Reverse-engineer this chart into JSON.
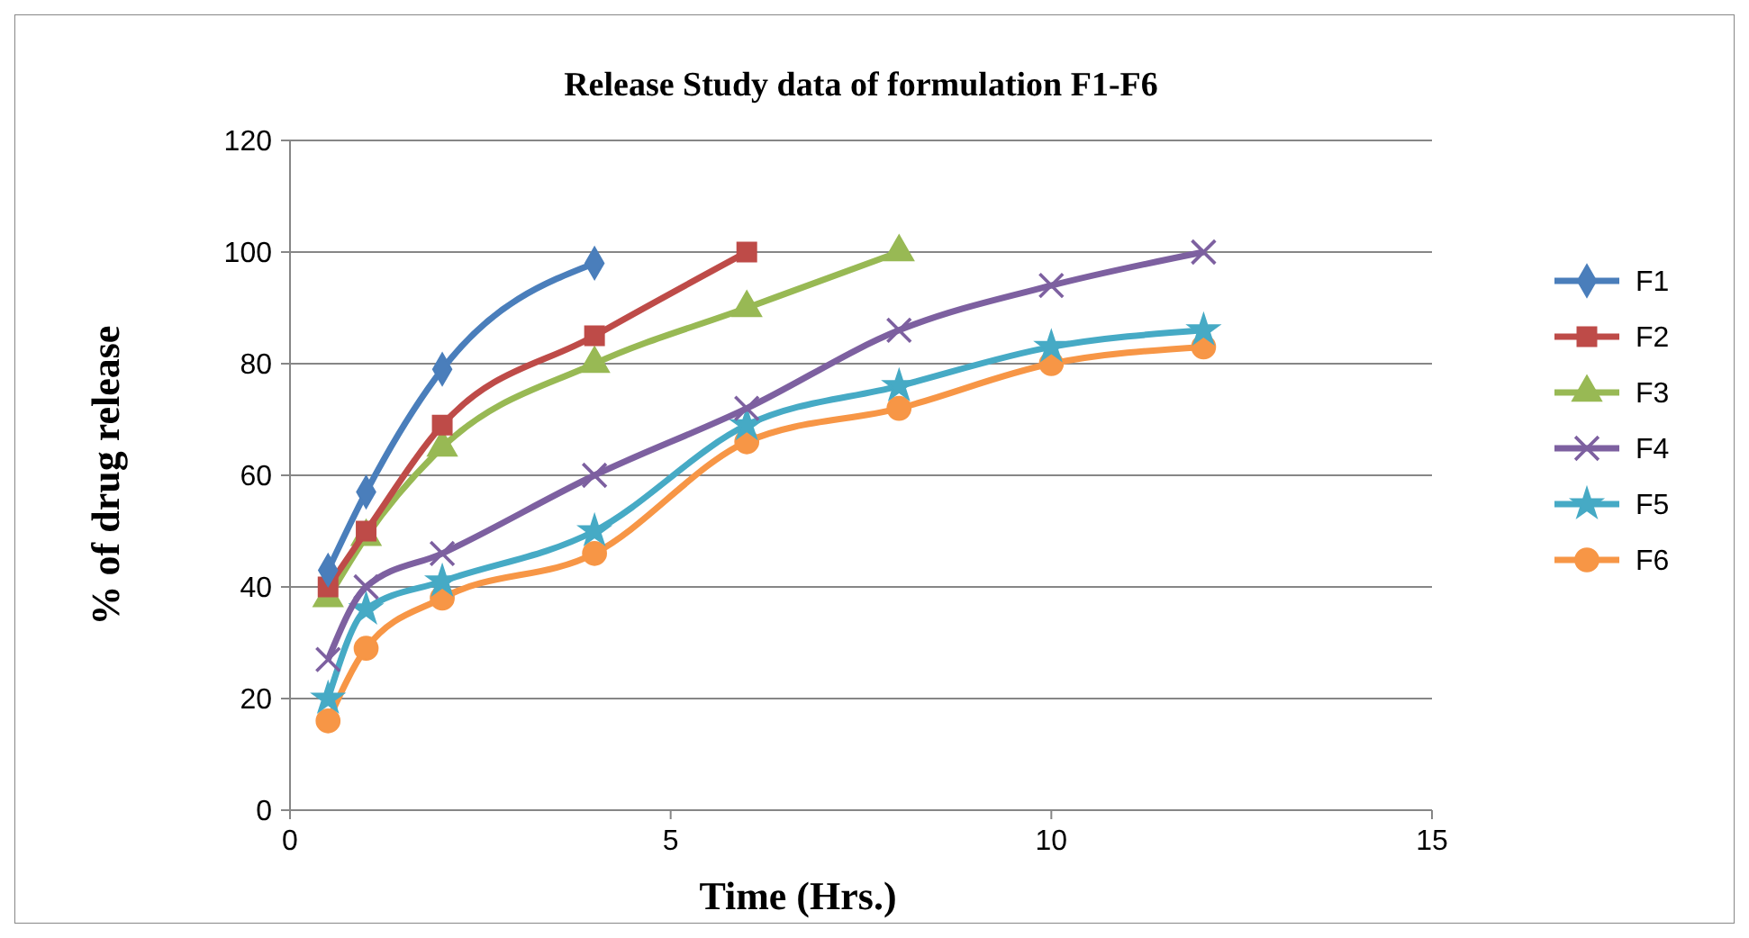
{
  "chart_data": {
    "type": "line",
    "title": "Release Study data of formulation F1-F6",
    "xlabel": "Time (Hrs.)",
    "ylabel": "% of drug release",
    "xlim": [
      0,
      15
    ],
    "xticks": [
      0,
      5,
      10,
      15
    ],
    "ylim": [
      0,
      120
    ],
    "yticks": [
      0,
      20,
      40,
      60,
      80,
      100,
      120
    ],
    "grid": "y",
    "legend": "right",
    "series": [
      {
        "name": "F1",
        "color": "#4a7ebb",
        "marker": "diamond",
        "x": [
          0.5,
          1,
          2,
          4
        ],
        "values": [
          43,
          57,
          79,
          98
        ]
      },
      {
        "name": "F2",
        "color": "#be4b48",
        "marker": "square",
        "x": [
          0.5,
          1,
          2,
          4,
          6
        ],
        "values": [
          40,
          50,
          69,
          85,
          100
        ]
      },
      {
        "name": "F3",
        "color": "#98b954",
        "marker": "triangle",
        "x": [
          0.5,
          1,
          2,
          4,
          6,
          8
        ],
        "values": [
          38,
          49,
          65,
          80,
          90,
          100
        ]
      },
      {
        "name": "F4",
        "color": "#7d60a0",
        "marker": "cross",
        "x": [
          0.5,
          1,
          2,
          4,
          6,
          8,
          10,
          12
        ],
        "values": [
          27,
          40,
          46,
          60,
          72,
          86,
          94,
          100
        ]
      },
      {
        "name": "F5",
        "color": "#46aac5",
        "marker": "star",
        "x": [
          0.5,
          1,
          2,
          4,
          6,
          8,
          10,
          12
        ],
        "values": [
          20,
          36,
          41,
          50,
          69,
          76,
          83,
          86
        ]
      },
      {
        "name": "F6",
        "color": "#f79646",
        "marker": "circle",
        "x": [
          0.5,
          1,
          2,
          4,
          6,
          8,
          10,
          12
        ],
        "values": [
          16,
          29,
          38,
          46,
          66,
          72,
          80,
          83
        ]
      }
    ]
  }
}
